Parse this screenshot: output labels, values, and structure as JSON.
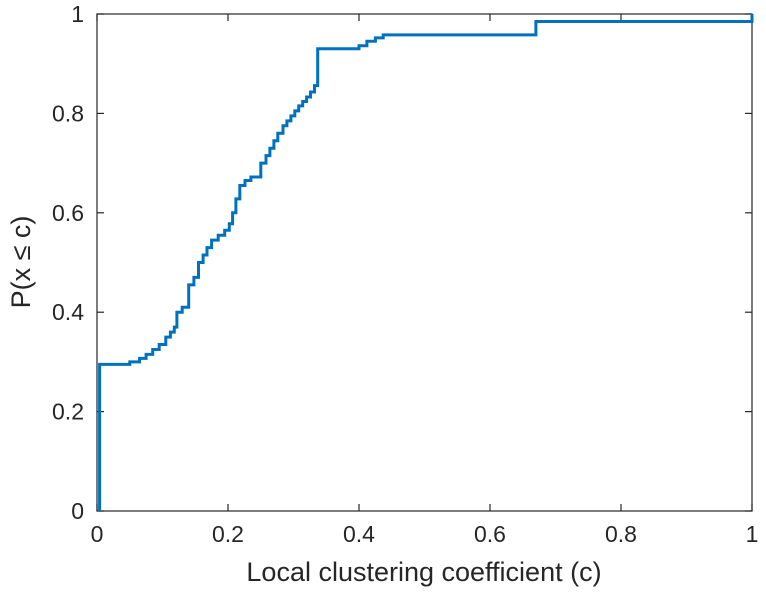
{
  "chart_data": {
    "type": "line",
    "subtype": "ecdf-step",
    "title": "",
    "xlabel": "Local clustering coefficient (c)",
    "ylabel": "P(x ≤ c)",
    "xlim": [
      0,
      1
    ],
    "ylim": [
      0,
      1
    ],
    "xticks": [
      0,
      0.2,
      0.4,
      0.6,
      0.8,
      1
    ],
    "xtick_labels": [
      "0",
      "0.2",
      "0.4",
      "0.6",
      "0.8",
      "1"
    ],
    "yticks": [
      0,
      0.2,
      0.4,
      0.6,
      0.8,
      1
    ],
    "ytick_labels": [
      "0",
      "0.2",
      "0.4",
      "0.6",
      "0.8",
      "1"
    ],
    "grid": false,
    "legend": "none",
    "line_color": "#0072BD",
    "line_width": 3,
    "axis_color": "#262626",
    "series": [
      {
        "name": "empirical-cdf",
        "points": [
          [
            0.004,
            0
          ],
          [
            0.004,
            0.295
          ],
          [
            0.05,
            0.3
          ],
          [
            0.065,
            0.307
          ],
          [
            0.075,
            0.315
          ],
          [
            0.085,
            0.325
          ],
          [
            0.095,
            0.335
          ],
          [
            0.105,
            0.35
          ],
          [
            0.112,
            0.36
          ],
          [
            0.118,
            0.37
          ],
          [
            0.122,
            0.4
          ],
          [
            0.13,
            0.41
          ],
          [
            0.14,
            0.455
          ],
          [
            0.148,
            0.47
          ],
          [
            0.155,
            0.5
          ],
          [
            0.162,
            0.515
          ],
          [
            0.168,
            0.53
          ],
          [
            0.175,
            0.545
          ],
          [
            0.185,
            0.555
          ],
          [
            0.195,
            0.565
          ],
          [
            0.202,
            0.578
          ],
          [
            0.207,
            0.6
          ],
          [
            0.212,
            0.628
          ],
          [
            0.218,
            0.655
          ],
          [
            0.226,
            0.665
          ],
          [
            0.235,
            0.672
          ],
          [
            0.25,
            0.7
          ],
          [
            0.258,
            0.715
          ],
          [
            0.264,
            0.73
          ],
          [
            0.27,
            0.745
          ],
          [
            0.276,
            0.76
          ],
          [
            0.284,
            0.775
          ],
          [
            0.29,
            0.785
          ],
          [
            0.296,
            0.795
          ],
          [
            0.302,
            0.805
          ],
          [
            0.308,
            0.815
          ],
          [
            0.314,
            0.824
          ],
          [
            0.32,
            0.833
          ],
          [
            0.326,
            0.843
          ],
          [
            0.332,
            0.856
          ],
          [
            0.337,
            0.93
          ],
          [
            0.4,
            0.936
          ],
          [
            0.412,
            0.945
          ],
          [
            0.425,
            0.952
          ],
          [
            0.437,
            0.958
          ],
          [
            0.67,
            0.985
          ],
          [
            1,
            1
          ]
        ]
      }
    ]
  }
}
